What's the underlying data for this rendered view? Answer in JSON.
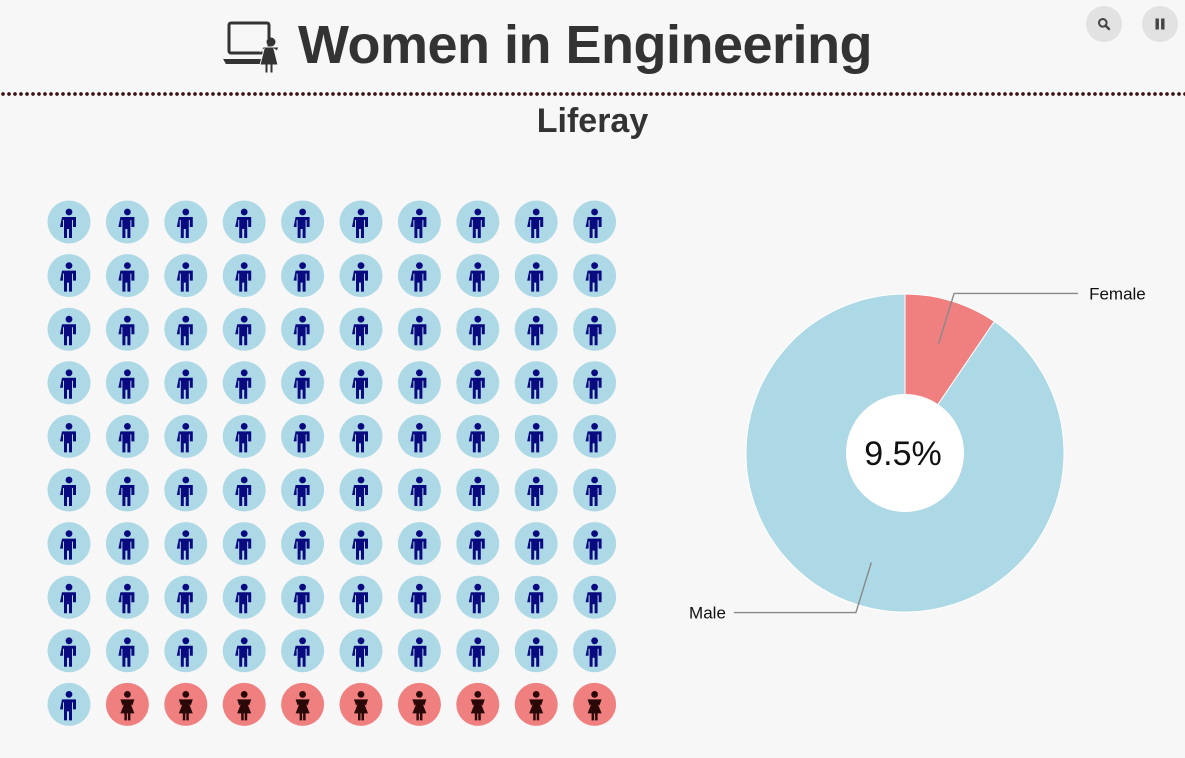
{
  "header": {
    "title": "Women in Engineering",
    "logo_icon": "laptop-with-woman-icon",
    "search_icon": "search-icon",
    "pause_icon": "pause-icon"
  },
  "subtitle": "Liferay",
  "colors": {
    "male_bg": "#add8e6",
    "male_figure": "#0a0a80",
    "female_bg": "#f08080",
    "female_figure": "#2a0808",
    "divider": "#3a1414",
    "button_bg": "#e2e2e2"
  },
  "chart_data": [
    {
      "type": "waffle",
      "grid": {
        "rows": 10,
        "cols": 10
      },
      "series": [
        {
          "name": "Male",
          "count": 91,
          "icon": "male-person-icon"
        },
        {
          "name": "Female",
          "count": 9,
          "icon": "female-person-icon"
        }
      ]
    },
    {
      "type": "pie",
      "subtype": "donut",
      "center_label": "9.5%",
      "slices": [
        {
          "label": "Female",
          "value": 9.5
        },
        {
          "label": "Male",
          "value": 90.5
        }
      ]
    }
  ]
}
